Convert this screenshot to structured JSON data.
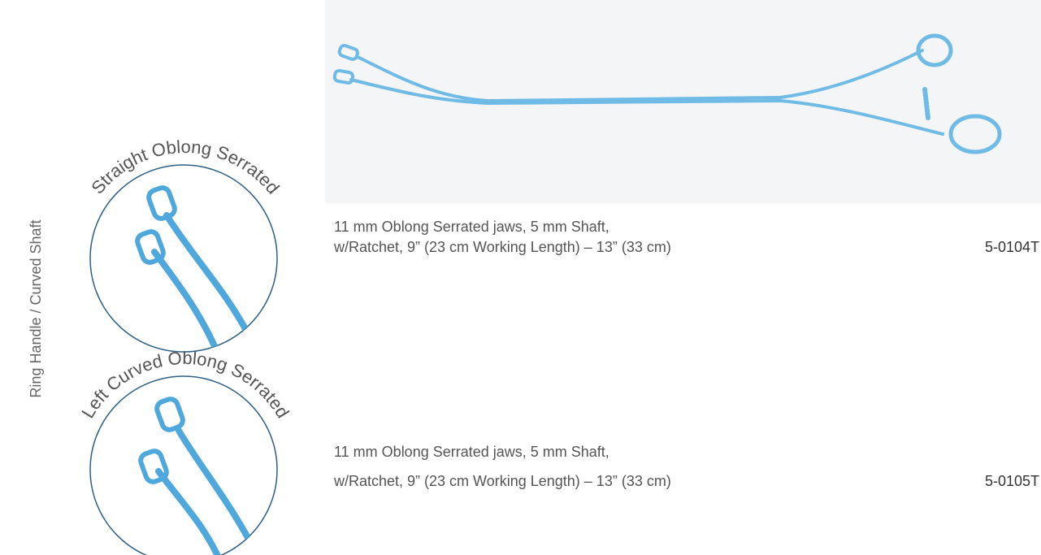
{
  "side_label": "Ring Handle / Curved Shaft",
  "products": [
    {
      "jaw_label": "Straight Oblong Serrated",
      "description": [
        "11 mm Oblong Serrated jaws, 5 mm Shaft,",
        "w/Ratchet, 9” (23 cm Working Length) – 13” (33 cm)"
      ],
      "code": "5-0104T"
    },
    {
      "jaw_label": "Left Curved Oblong Serrated",
      "description": [
        "11 mm Oblong Serrated jaws, 5 mm Shaft,",
        "w/Ratchet, 9” (23 cm Working Length) – 13” (33 cm)"
      ],
      "code": "5-0105T"
    }
  ]
}
